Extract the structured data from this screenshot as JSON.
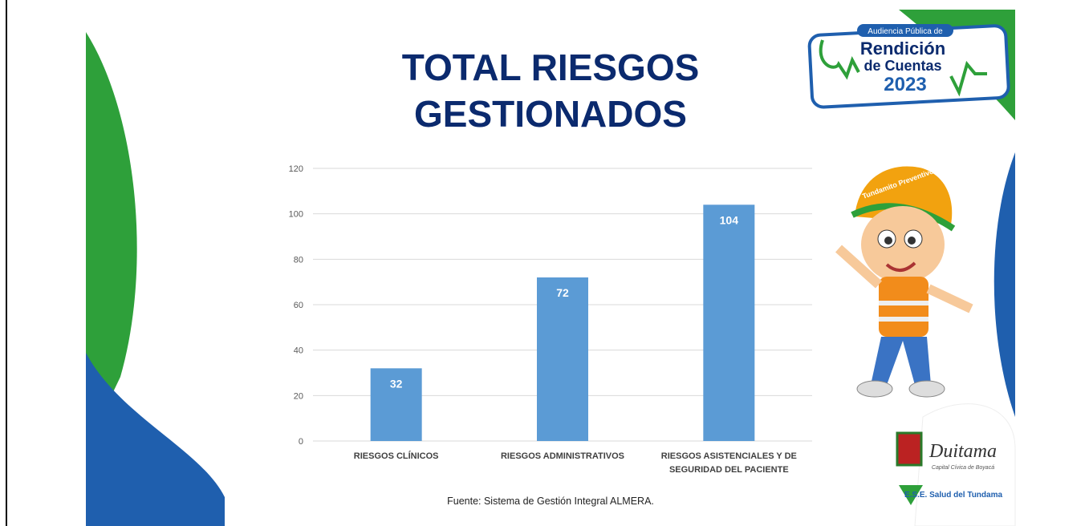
{
  "chart_data": {
    "type": "bar",
    "title": "TOTAL RIESGOS GESTIONADOS",
    "categories": [
      "RIESGOS CLÍNICOS",
      "RIESGOS ADMINISTRATIVOS",
      "RIESGOS ASISTENCIALES Y DE SEGURIDAD DEL PACIENTE"
    ],
    "values": [
      32,
      72,
      104
    ],
    "color": "#5b9bd5",
    "ylim": [
      0,
      120
    ],
    "yticks": [
      0,
      20,
      40,
      60,
      80,
      100,
      120
    ],
    "grid": true,
    "source": "Fuente: Sistema de Gestión Integral ALMERA."
  },
  "logos": {
    "event_top": "Audiencia Pública de",
    "event_main_1": "Rendición",
    "event_main_2": "de Cuentas",
    "event_year": "2023",
    "mascot_cap": "Tundamito Preventivo",
    "city": "Duitama",
    "city_motto": "Capital Cívica de Boyacá",
    "hospital": "E.S.E. Salud del Tundama"
  }
}
